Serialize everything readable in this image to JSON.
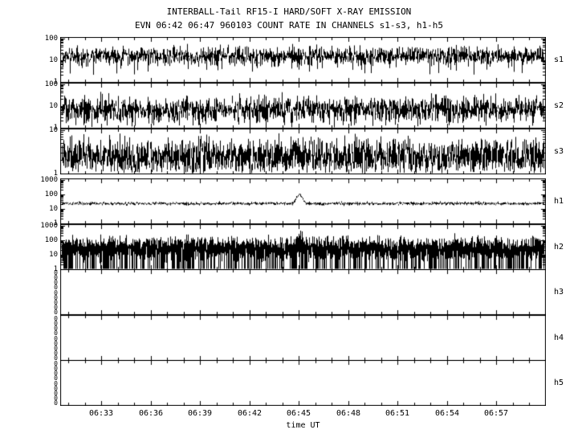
{
  "chart_data": {
    "type": "line",
    "title": "INTERBALL-Tail RF15-I HARD/SOFT X-RAY EMISSION",
    "subtitle": "EVN 06:42 06:47 960103  COUNT RATE IN CHANNELS s1-s3, h1-h5",
    "xlabel": "time UT",
    "grid": false,
    "x_axis": {
      "start": "06:30:30",
      "end": "07:00:00",
      "major_ticks": [
        "06:33",
        "06:36",
        "06:39",
        "06:42",
        "06:45",
        "06:48",
        "06:51",
        "06:54",
        "06:57"
      ],
      "minor_step_minutes": 1
    },
    "event": {
      "start": "06:42",
      "end": "06:47",
      "date": "960103"
    },
    "panels": [
      {
        "id": "s1",
        "label": "s1",
        "scale": "log",
        "ylim": [
          1,
          100
        ],
        "yticks": [
          100,
          10,
          1
        ],
        "style": "hairy",
        "baseline": 15,
        "noise": 0.2,
        "dropout": 0.03,
        "dropout_range": [
          2,
          6
        ],
        "samples": 3,
        "seed": 101,
        "description": "noisy count rate ~8-35 c/s"
      },
      {
        "id": "s2",
        "label": "s2",
        "scale": "log",
        "ylim": [
          1,
          100
        ],
        "yticks": [
          100,
          10,
          1
        ],
        "style": "hairy",
        "baseline": 7,
        "noise": 0.28,
        "dropout": 0.05,
        "dropout_range": [
          1,
          3
        ],
        "samples": 3,
        "seed": 202,
        "description": "noisy count rate ~3-15 c/s"
      },
      {
        "id": "s3",
        "label": "s3",
        "scale": "log",
        "ylim": [
          1,
          10
        ],
        "yticks": [
          10,
          1
        ],
        "style": "hairy",
        "baseline": 3,
        "noise": 0.16,
        "dropout": 0.3,
        "dropout_range": [
          1,
          2
        ],
        "samples": 3,
        "seed": 303,
        "description": "count rate ~2-5 c/s with frequent drops toward 1"
      },
      {
        "id": "h1",
        "label": "h1",
        "scale": "log",
        "ylim": [
          1,
          1000
        ],
        "yticks": [
          1000,
          100,
          10,
          1
        ],
        "style": "line",
        "baseline": 22,
        "noise": 0.05,
        "peak": {
          "time": "06:45",
          "value": 90
        },
        "seed": 404,
        "description": "steady ~20-25 c/s with burst peak near 06:45"
      },
      {
        "id": "h2",
        "label": "h2",
        "scale": "log",
        "ylim": [
          1,
          1000
        ],
        "yticks": [
          1000,
          100,
          10,
          1
        ],
        "style": "band",
        "band_top": 70,
        "band_bottom": 8,
        "noise": 0.22,
        "dropout": 0.5,
        "peak": {
          "time": "06:45",
          "value": 400
        },
        "seed": 505,
        "description": "dense noisy band ~5-150 c/s with dropouts to 1, burst near 06:45"
      },
      {
        "id": "h3",
        "label": "h3",
        "scale": "linear",
        "ylim": [
          0,
          0
        ],
        "yticks": [
          0,
          0,
          0,
          0,
          0,
          0,
          0,
          0,
          0
        ],
        "style": "empty",
        "seed": 606,
        "description": "zero counts"
      },
      {
        "id": "h4",
        "label": "h4",
        "scale": "linear",
        "ylim": [
          0,
          0
        ],
        "yticks": [
          0,
          0,
          0,
          0,
          0,
          0,
          0,
          0,
          0
        ],
        "style": "empty",
        "seed": 707,
        "description": "zero counts"
      },
      {
        "id": "h5",
        "label": "h5",
        "scale": "linear",
        "ylim": [
          0,
          0
        ],
        "yticks": [
          0,
          0,
          0,
          0,
          0,
          0,
          0,
          0,
          0
        ],
        "style": "empty",
        "seed": 808,
        "description": "zero counts"
      }
    ]
  }
}
